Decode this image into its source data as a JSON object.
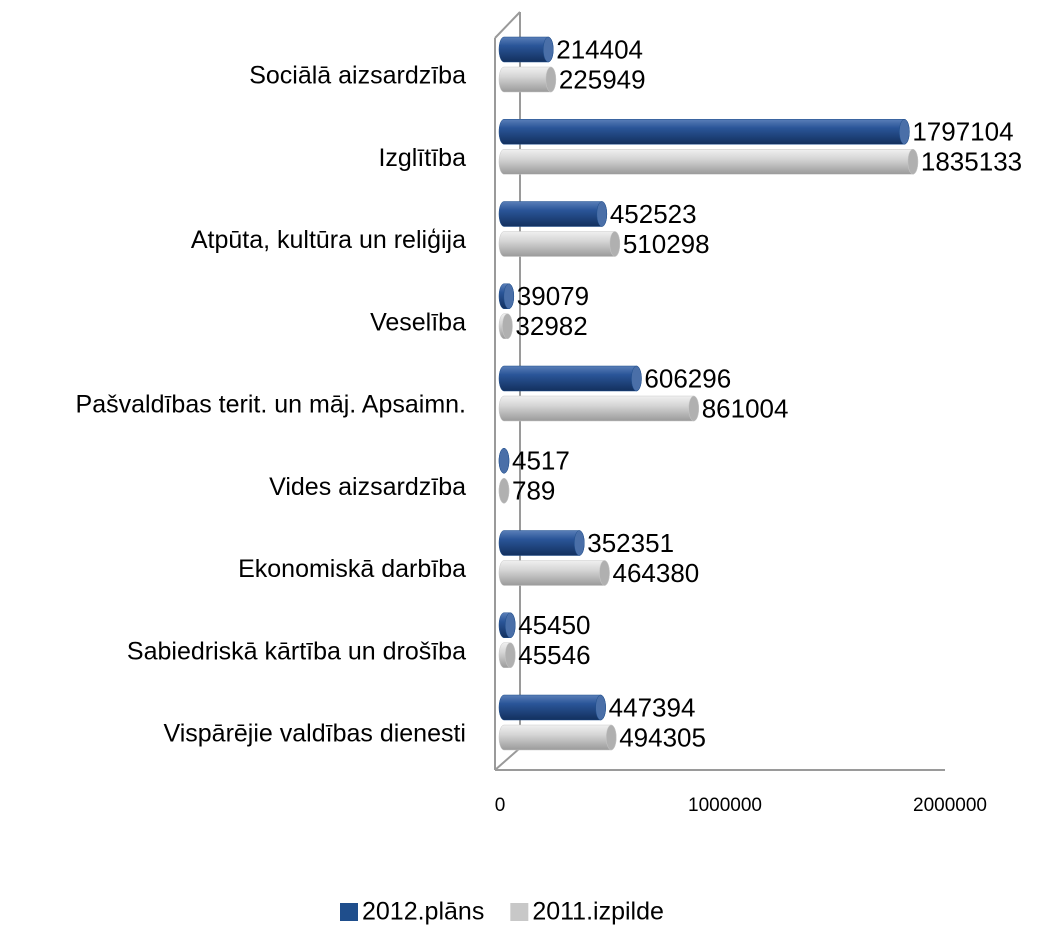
{
  "chart_data": {
    "type": "bar",
    "orientation": "horizontal",
    "categories": [
      "Sociālā aizsardzība",
      "Izglītība",
      "Atpūta, kultūra un reliģija",
      "Veselība",
      "Pašvaldības terit. un māj. Apsaimn.",
      "Vides aizsardzība",
      "Ekonomiskā darbība",
      "Sabiedriskā kārtība un drošība",
      "Vispārējie valdības dienesti"
    ],
    "series": [
      {
        "name": "2012.plāns",
        "color": "#1f4e8c",
        "values": [
          214404,
          1797104,
          452523,
          39079,
          606296,
          4517,
          352351,
          45450,
          447394
        ]
      },
      {
        "name": "2011.izpilde",
        "color": "#c8c8c8",
        "values": [
          225949,
          1835133,
          510298,
          32982,
          861004,
          789,
          464380,
          45546,
          494305
        ]
      }
    ],
    "xlim": [
      0,
      2000000
    ],
    "xticks": [
      0,
      1000000,
      2000000
    ],
    "legend": "bottom"
  }
}
